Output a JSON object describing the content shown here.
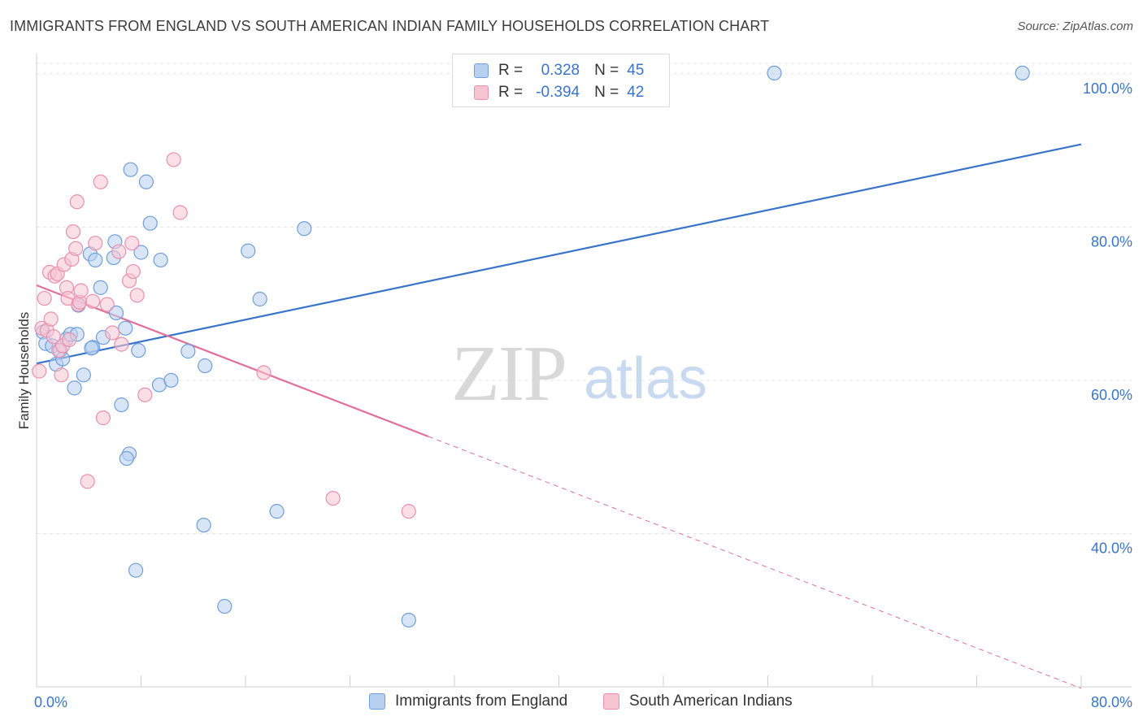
{
  "title": "IMMIGRANTS FROM ENGLAND VS SOUTH AMERICAN INDIAN FAMILY HOUSEHOLDS CORRELATION CHART",
  "source": "Source: ZipAtlas.com",
  "watermark": {
    "zip": "ZIP",
    "atlas": "atlas"
  },
  "legend_top": [
    {
      "r_label": "R =",
      "r_value": "0.328",
      "n_label": "N =",
      "n_value": "45"
    },
    {
      "r_label": "R =",
      "r_value": "-0.394",
      "n_label": "N =",
      "n_value": "42"
    }
  ],
  "colors": {
    "blue_fill": "#b8d0f0",
    "blue_stroke": "#6f9fd8",
    "blue_line": "#3a74c9",
    "pink_fill": "#f7c4d4",
    "pink_stroke": "#e890ad",
    "pink_line": "#e0709a",
    "axis_text": "#3a74c9",
    "grid": "#e5e5e5"
  },
  "chart_data": {
    "type": "scatter",
    "title": "IMMIGRANTS FROM ENGLAND VS SOUTH AMERICAN INDIAN FAMILY HOUSEHOLDS CORRELATION CHART",
    "xlabel": "",
    "ylabel": "Family Households",
    "xlim": [
      0,
      80
    ],
    "ylim": [
      20,
      102
    ],
    "x_tick_labels": [
      {
        "value": 0,
        "label": "0.0%"
      },
      {
        "value": 80,
        "label": "80.0%"
      }
    ],
    "y_ticks": [
      {
        "value": 40,
        "label": "40.0%"
      },
      {
        "value": 60,
        "label": "60.0%"
      },
      {
        "value": 80,
        "label": "80.0%"
      },
      {
        "value": 100,
        "label": "100.0%"
      }
    ],
    "series": [
      {
        "name": "Immigrants from England",
        "color": "#6f9fd8",
        "r": 0.328,
        "n": 45,
        "trend": {
          "x0": 0,
          "y0": 62.2,
          "x1": 80,
          "y1": 90.8,
          "dash_from": null
        },
        "points": [
          [
            0.5,
            66.3
          ],
          [
            0.7,
            64.8
          ],
          [
            1.2,
            64.5
          ],
          [
            1.5,
            62.1
          ],
          [
            1.8,
            63.9
          ],
          [
            2.0,
            62.8
          ],
          [
            2.3,
            65.4
          ],
          [
            2.6,
            66.0
          ],
          [
            2.9,
            59.0
          ],
          [
            3.1,
            66.0
          ],
          [
            3.2,
            69.8
          ],
          [
            3.6,
            60.7
          ],
          [
            4.1,
            76.5
          ],
          [
            4.3,
            64.3
          ],
          [
            4.5,
            75.7
          ],
          [
            4.9,
            72.1
          ],
          [
            5.1,
            65.6
          ],
          [
            5.9,
            76.0
          ],
          [
            6.0,
            78.1
          ],
          [
            6.1,
            68.8
          ],
          [
            6.5,
            56.8
          ],
          [
            6.8,
            66.8
          ],
          [
            7.1,
            50.4
          ],
          [
            7.2,
            87.5
          ],
          [
            7.6,
            35.2
          ],
          [
            7.8,
            63.9
          ],
          [
            8.0,
            76.7
          ],
          [
            8.4,
            85.9
          ],
          [
            8.7,
            80.5
          ],
          [
            9.4,
            59.4
          ],
          [
            9.5,
            75.7
          ],
          [
            10.3,
            60.0
          ],
          [
            11.6,
            63.8
          ],
          [
            12.8,
            41.1
          ],
          [
            12.9,
            61.9
          ],
          [
            14.4,
            30.5
          ],
          [
            16.2,
            76.9
          ],
          [
            17.1,
            70.6
          ],
          [
            18.4,
            42.9
          ],
          [
            20.5,
            79.8
          ],
          [
            28.5,
            28.7
          ],
          [
            56.5,
            100.1
          ],
          [
            75.5,
            100.1
          ],
          [
            6.9,
            49.8
          ],
          [
            4.2,
            64.2
          ]
        ]
      },
      {
        "name": "South American Indians",
        "color": "#e890ad",
        "r": -0.394,
        "n": 42,
        "trend": {
          "x0": 0,
          "y0": 72.4,
          "x1": 80,
          "y1": 19.8,
          "dash_from": 30.0
        },
        "points": [
          [
            0.2,
            61.2
          ],
          [
            0.4,
            66.8
          ],
          [
            0.6,
            70.7
          ],
          [
            0.8,
            66.5
          ],
          [
            1.0,
            74.1
          ],
          [
            1.1,
            68.0
          ],
          [
            1.3,
            65.7
          ],
          [
            1.4,
            73.6
          ],
          [
            1.6,
            73.9
          ],
          [
            1.7,
            63.9
          ],
          [
            1.9,
            60.7
          ],
          [
            2.0,
            64.5
          ],
          [
            2.1,
            75.1
          ],
          [
            2.3,
            72.1
          ],
          [
            2.4,
            70.7
          ],
          [
            2.5,
            65.3
          ],
          [
            2.7,
            75.8
          ],
          [
            2.8,
            79.4
          ],
          [
            3.0,
            77.2
          ],
          [
            3.1,
            83.3
          ],
          [
            3.2,
            69.9
          ],
          [
            3.3,
            70.2
          ],
          [
            3.4,
            71.7
          ],
          [
            3.9,
            46.8
          ],
          [
            4.3,
            70.3
          ],
          [
            4.5,
            77.9
          ],
          [
            4.9,
            85.9
          ],
          [
            5.1,
            55.1
          ],
          [
            5.4,
            69.9
          ],
          [
            5.8,
            66.2
          ],
          [
            6.3,
            76.8
          ],
          [
            6.5,
            64.7
          ],
          [
            7.1,
            73.0
          ],
          [
            7.3,
            77.9
          ],
          [
            7.4,
            74.2
          ],
          [
            7.7,
            71.1
          ],
          [
            8.3,
            58.1
          ],
          [
            10.5,
            88.8
          ],
          [
            11.0,
            81.9
          ],
          [
            17.4,
            61.0
          ],
          [
            22.7,
            44.6
          ],
          [
            28.5,
            42.9
          ]
        ]
      }
    ]
  }
}
